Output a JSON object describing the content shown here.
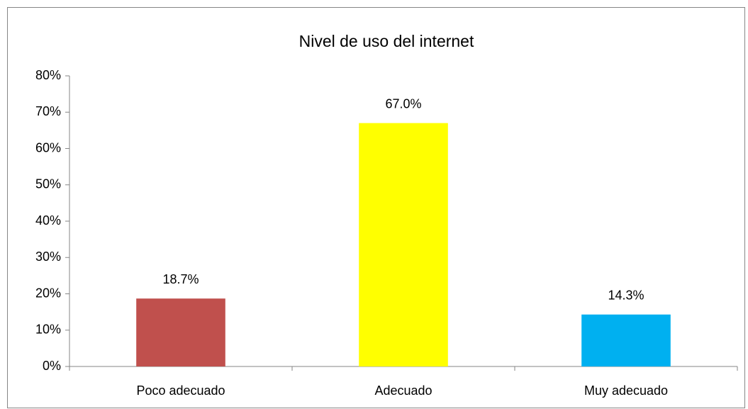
{
  "chart_data": {
    "type": "bar",
    "title": "Nivel de uso del internet",
    "categories": [
      "Poco adecuado",
      "Adecuado",
      "Muy adecuado"
    ],
    "values": [
      18.7,
      67.0,
      14.3
    ],
    "value_labels": [
      "18.7%",
      "67.0%",
      "14.3%"
    ],
    "colors": [
      "#c0504d",
      "#ffff00",
      "#00b0f0"
    ],
    "ylim": [
      0,
      80
    ],
    "yticks": [
      {
        "value": 0,
        "label": "0%"
      },
      {
        "value": 10,
        "label": "10%"
      },
      {
        "value": 20,
        "label": "20%"
      },
      {
        "value": 30,
        "label": "30%"
      },
      {
        "value": 40,
        "label": "40%"
      },
      {
        "value": 50,
        "label": "50%"
      },
      {
        "value": 60,
        "label": "60%"
      },
      {
        "value": 70,
        "label": "70%"
      },
      {
        "value": 80,
        "label": "80%"
      }
    ],
    "grid": false
  }
}
